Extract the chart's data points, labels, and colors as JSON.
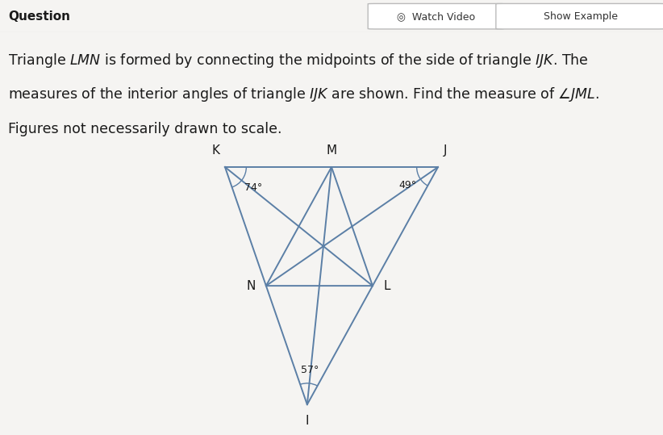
{
  "bg_color": "#f5f4f2",
  "line_color": "#5b7fa6",
  "text_color": "#1a1a1a",
  "label_color": "#1a1a1a",
  "angle_arc_color": "#5b7fa6",
  "header_text": "Question",
  "button1_text": "◎  Watch Video",
  "button2_text": "Show Example",
  "body_lines": [
    "Triangle $LMN$ is formed by connecting the midpoints of the side of triangle $IJK$. The",
    "measures of the interior angles of triangle $IJK$ are shown. Find the measure of $\\angle JML$.",
    "Figures not necessarily drawn to scale."
  ],
  "angles": {
    "K": "74°",
    "J": "49°",
    "I": "57°"
  },
  "K": [
    0.15,
    0.88
  ],
  "J": [
    0.85,
    0.88
  ],
  "I": [
    0.42,
    0.1
  ],
  "fig_width": 8.22,
  "fig_height": 5.39,
  "dpi": 100
}
